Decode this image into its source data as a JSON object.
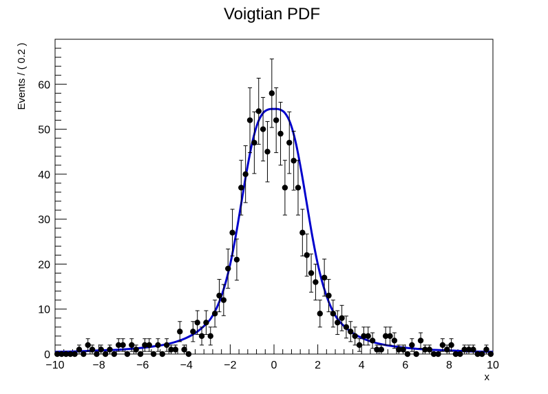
{
  "chart_data": {
    "type": "scatter",
    "title": "Voigtian PDF",
    "xlabel": "x",
    "ylabel": "Events / ( 0.2 )",
    "xlim": [
      -10,
      10
    ],
    "ylim": [
      0,
      70
    ],
    "grid": false,
    "x_ticks": [
      -10,
      -8,
      -6,
      -4,
      -2,
      0,
      2,
      4,
      6,
      8,
      10
    ],
    "x_tick_labels": [
      "−10",
      "−8",
      "−6",
      "−4",
      "−2",
      "0",
      "2",
      "4",
      "6",
      "8",
      "10"
    ],
    "y_ticks": [
      0,
      10,
      20,
      30,
      40,
      50,
      60
    ],
    "y_tick_labels": [
      "0",
      "10",
      "20",
      "30",
      "40",
      "50",
      "60"
    ],
    "bin_width": 0.2,
    "series": [
      {
        "kind": "points_with_errors",
        "color": "#000000",
        "x": [
          -9.9,
          -9.7,
          -9.5,
          -9.3,
          -9.1,
          -8.9,
          -8.7,
          -8.5,
          -8.3,
          -8.1,
          -7.9,
          -7.7,
          -7.5,
          -7.3,
          -7.1,
          -6.9,
          -6.7,
          -6.5,
          -6.3,
          -6.1,
          -5.9,
          -5.7,
          -5.5,
          -5.3,
          -5.1,
          -4.9,
          -4.7,
          -4.5,
          -4.3,
          -4.1,
          -3.9,
          -3.7,
          -3.5,
          -3.3,
          -3.1,
          -2.9,
          -2.7,
          -2.5,
          -2.3,
          -2.1,
          -1.9,
          -1.7,
          -1.5,
          -1.3,
          -1.1,
          -0.9,
          -0.7,
          -0.5,
          -0.3,
          -0.1,
          0.1,
          0.3,
          0.5,
          0.7,
          0.9,
          1.1,
          1.3,
          1.5,
          1.7,
          1.9,
          2.1,
          2.3,
          2.5,
          2.7,
          2.9,
          3.1,
          3.3,
          3.5,
          3.7,
          3.9,
          4.1,
          4.3,
          4.5,
          4.7,
          4.9,
          5.1,
          5.3,
          5.5,
          5.7,
          5.9,
          6.1,
          6.3,
          6.5,
          6.7,
          6.9,
          7.1,
          7.3,
          7.5,
          7.7,
          7.9,
          8.1,
          8.3,
          8.5,
          8.7,
          8.9,
          9.1,
          9.3,
          9.5,
          9.7,
          9.9
        ],
        "y": [
          0,
          0,
          0,
          0,
          0,
          1,
          0,
          2,
          1,
          0,
          1,
          0,
          1,
          0,
          2,
          2,
          0,
          2,
          1,
          0,
          2,
          2,
          0,
          2,
          0,
          2,
          1,
          1,
          5,
          1,
          0,
          5,
          7,
          4,
          7,
          4,
          9,
          13,
          12,
          19,
          27,
          21,
          37,
          40,
          52,
          47,
          54,
          50,
          45,
          58,
          52,
          49,
          37,
          47,
          43,
          37,
          27,
          22,
          18,
          16,
          9,
          17,
          13,
          9,
          7,
          8,
          6,
          5,
          4,
          2,
          4,
          4,
          3,
          1,
          1,
          4,
          4,
          3,
          1,
          1,
          0,
          2,
          0,
          3,
          1,
          1,
          0,
          0,
          2,
          1,
          2,
          0,
          0,
          1,
          1,
          1,
          0,
          0,
          1,
          0
        ]
      },
      {
        "kind": "curve",
        "name": "",
        "color": "#0000cc",
        "x": [
          -10,
          -9,
          -8,
          -7,
          -6,
          -5.5,
          -5,
          -4.5,
          -4,
          -3.5,
          -3,
          -2.75,
          -2.5,
          -2.25,
          -2,
          -1.75,
          -1.5,
          -1.25,
          -1,
          -0.75,
          -0.5,
          -0.25,
          0,
          0.25,
          0.5,
          0.75,
          1,
          1.25,
          1.5,
          1.75,
          2,
          2.25,
          2.5,
          2.75,
          3,
          3.5,
          4,
          4.5,
          5,
          5.5,
          6,
          7,
          8,
          9,
          10
        ],
        "y": [
          0.5,
          0.6,
          0.8,
          1.0,
          1.4,
          1.7,
          2.1,
          2.7,
          3.6,
          5.0,
          7.2,
          9.0,
          11.6,
          15.2,
          20.0,
          26.2,
          33.4,
          40.6,
          46.9,
          51.3,
          53.6,
          54.4,
          54.5,
          54.4,
          53.6,
          51.3,
          46.9,
          40.6,
          33.4,
          26.2,
          20.0,
          15.2,
          11.6,
          9.0,
          7.2,
          5.0,
          3.6,
          2.7,
          2.1,
          1.7,
          1.4,
          1.0,
          0.8,
          0.6,
          0.5
        ]
      }
    ]
  }
}
